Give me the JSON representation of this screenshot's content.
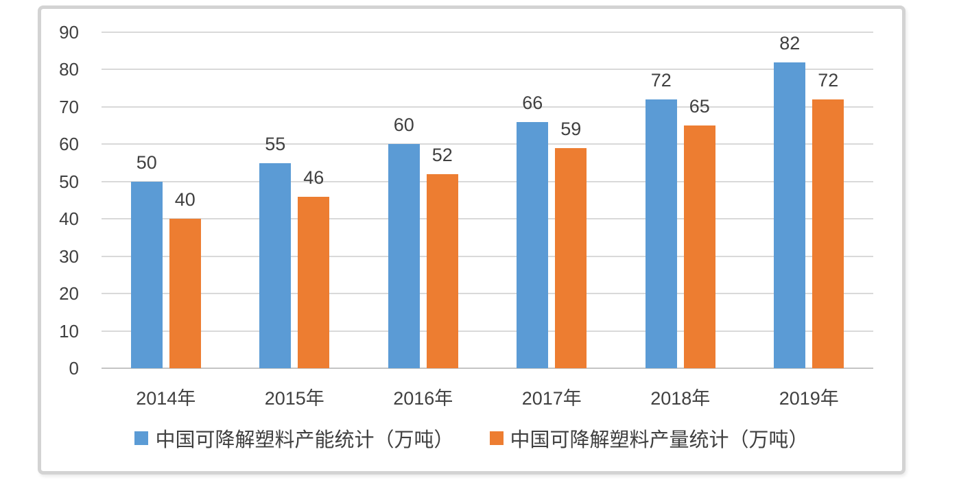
{
  "chart_data": {
    "type": "bar",
    "title": "",
    "categories": [
      "2014年",
      "2015年",
      "2016年",
      "2017年",
      "2018年",
      "2019年"
    ],
    "series": [
      {
        "name": "中国可降解塑料产能统计（万吨）",
        "color": "#5B9BD5",
        "values": [
          50,
          55,
          60,
          66,
          72,
          82
        ]
      },
      {
        "name": "中国可降解塑料产量统计（万吨）",
        "color": "#ED7D31",
        "values": [
          40,
          46,
          52,
          59,
          65,
          72
        ]
      }
    ],
    "ylim": [
      0,
      90
    ],
    "yticks": [
      0,
      10,
      20,
      30,
      40,
      50,
      60,
      70,
      80,
      90
    ],
    "grid": true,
    "legend_position": "bottom",
    "data_labels": true
  },
  "colors": {
    "series_blue": "#5B9BD5",
    "series_orange": "#ED7D31",
    "text": "#404040",
    "gridline": "#D9D9D9",
    "axis_line": "#C4C4C4",
    "panel_border": "#D3D3D3",
    "background": "#FFFFFF"
  }
}
